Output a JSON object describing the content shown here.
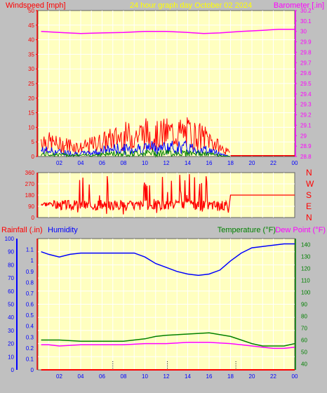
{
  "colors": {
    "background": "#c0c0c0",
    "plot_bg": "#ffffc0",
    "grid": "#ffffff",
    "red": "#ff0000",
    "blue": "#0000ff",
    "green": "#008000",
    "magenta": "#ff00ff",
    "yellow": "#ffff00",
    "dark": "#606060"
  },
  "header": {
    "left": "Windspeed [mph]",
    "center": "24 hour graph day   October 02 2024",
    "right": "Barometer [.in]"
  },
  "chart_data": [
    {
      "type": "line",
      "name": "wind-barometer",
      "x_ticks": [
        "02",
        "04",
        "06",
        "08",
        "10",
        "12",
        "14",
        "16",
        "18",
        "20",
        "22",
        "00"
      ],
      "xlim": [
        0,
        24
      ],
      "ylabel_left": "Windspeed [mph]",
      "ylabel_right": "Barometer [.in]",
      "ylim_left": [
        0,
        50
      ],
      "yticks_left": [
        "0",
        "5",
        "10",
        "15",
        "20",
        "25",
        "30",
        "35",
        "40",
        "45",
        "50"
      ],
      "ylim_right": [
        28.8,
        30.2
      ],
      "yticks_right": [
        "28.8",
        "28.9",
        "29",
        "29.1",
        "29.2",
        "29.3",
        "29.4",
        "29.5",
        "29.6",
        "29.7",
        "29.8",
        "29.9",
        "30",
        "30.1",
        "30.2"
      ],
      "series": [
        {
          "name": "Barometer",
          "color": "#ff00ff",
          "x": [
            0.3,
            2,
            4,
            6,
            8,
            10,
            12,
            14,
            15.5,
            17,
            19,
            21,
            22.5,
            24
          ],
          "y": [
            30.0,
            29.99,
            29.98,
            29.985,
            29.99,
            30.0,
            30.0,
            29.99,
            29.98,
            29.985,
            30.0,
            30.01,
            30.02,
            30.02
          ]
        },
        {
          "name": "Wind gust",
          "color": "#ff0000",
          "x": [
            0.3,
            1,
            2,
            3,
            4,
            5,
            6,
            7,
            8,
            9,
            10,
            11,
            12,
            13,
            14,
            15,
            16,
            17,
            18
          ],
          "y": [
            6,
            5,
            4,
            4,
            3,
            4,
            5,
            6,
            7,
            7,
            8,
            7,
            8,
            8,
            8,
            7,
            6,
            3,
            1
          ]
        },
        {
          "name": "Wind speed",
          "color": "#0000ff",
          "x": [
            0.3,
            1,
            2,
            3,
            4,
            5,
            6,
            7,
            8,
            9,
            10,
            11,
            12,
            13,
            14,
            15,
            16,
            17,
            18
          ],
          "y": [
            2,
            2,
            1.5,
            1.2,
            1,
            1.2,
            2,
            2.5,
            2.5,
            2.5,
            3,
            3,
            3,
            3,
            3,
            2.5,
            2,
            1,
            0
          ]
        }
      ]
    },
    {
      "type": "line",
      "name": "wind-direction",
      "x_ticks": [],
      "xlim": [
        0,
        24
      ],
      "ylim": [
        0,
        360
      ],
      "yticks_left": [
        "0",
        "90",
        "180",
        "270",
        "360"
      ],
      "right_labels": [
        "N",
        "W",
        "S",
        "E",
        "N"
      ],
      "series": [
        {
          "name": "Wind direction",
          "color": "#ff0000",
          "x": [
            0.3,
            1,
            2,
            3,
            3.5,
            4,
            5,
            6,
            7,
            8,
            9,
            10,
            11,
            12,
            13,
            14,
            15,
            16,
            17,
            17.5,
            18,
            24
          ],
          "y": [
            100,
            110,
            140,
            120,
            100,
            70,
            80,
            90,
            60,
            100,
            80,
            90,
            110,
            90,
            100,
            80,
            90,
            70,
            60,
            40,
            180,
            180
          ]
        }
      ]
    },
    {
      "type": "line",
      "name": "rain-humidity-temperature",
      "x_ticks": [
        "02",
        "04",
        "06",
        "08",
        "10",
        "12",
        "14",
        "16",
        "18",
        "20",
        "22",
        "00"
      ],
      "xlim": [
        0,
        24
      ],
      "labels": {
        "rainfall": "Rainfall (.in)",
        "humidity": "Humidity",
        "temperature": "Temperature (°F)",
        "dewpoint": "Dew Point (°F)"
      },
      "ylim_humidity": [
        0,
        100
      ],
      "yticks_humidity": [
        "0",
        "10",
        "20",
        "30",
        "40",
        "50",
        "60",
        "70",
        "80",
        "90",
        "100"
      ],
      "ylim_rain": [
        0,
        1.2
      ],
      "yticks_rain": [
        "0",
        "0.1",
        "0.2",
        "0.3",
        "0.4",
        "0.5",
        "0.6",
        "0.7",
        "0.8",
        "0.9",
        "1",
        "1.1"
      ],
      "ylim_temp": [
        35,
        145
      ],
      "yticks_temp": [
        "40",
        "50",
        "60",
        "70",
        "80",
        "90",
        "100",
        "110",
        "120",
        "130",
        "140"
      ],
      "series": [
        {
          "name": "Humidity",
          "color": "#0000ff",
          "x": [
            0.3,
            1,
            2,
            3,
            4,
            5,
            6,
            7,
            8,
            9,
            10,
            11,
            12,
            13,
            14,
            15,
            16,
            17,
            18,
            19,
            20,
            21,
            22,
            23,
            24
          ],
          "y": [
            90,
            88,
            86,
            88,
            89,
            89,
            89,
            89,
            89,
            89,
            86,
            81,
            78,
            75,
            73,
            72,
            73,
            76,
            83,
            89,
            93,
            94,
            95,
            96,
            96
          ]
        },
        {
          "name": "Temperature",
          "color": "#008000",
          "x": [
            0.3,
            1,
            2,
            4,
            6,
            8,
            10,
            11,
            12,
            14,
            16,
            18,
            19,
            20,
            21,
            22,
            23,
            24
          ],
          "y": [
            60,
            60,
            60,
            59,
            59,
            59,
            61,
            63,
            64,
            65,
            66,
            63,
            60,
            57,
            55,
            55,
            55,
            57
          ]
        },
        {
          "name": "Dew Point",
          "color": "#ff00ff",
          "x": [
            0.3,
            1,
            2,
            4,
            6,
            8,
            10,
            12,
            14,
            16,
            18,
            19,
            20,
            21,
            22,
            23,
            24
          ],
          "y": [
            56,
            56,
            55,
            56,
            56,
            56,
            57,
            57,
            58,
            58,
            57,
            56,
            55,
            54,
            53,
            53,
            54
          ]
        },
        {
          "name": "Rainfall",
          "color": "#ff0000",
          "x": [
            0.3,
            24
          ],
          "y": [
            0,
            0
          ]
        }
      ]
    }
  ]
}
